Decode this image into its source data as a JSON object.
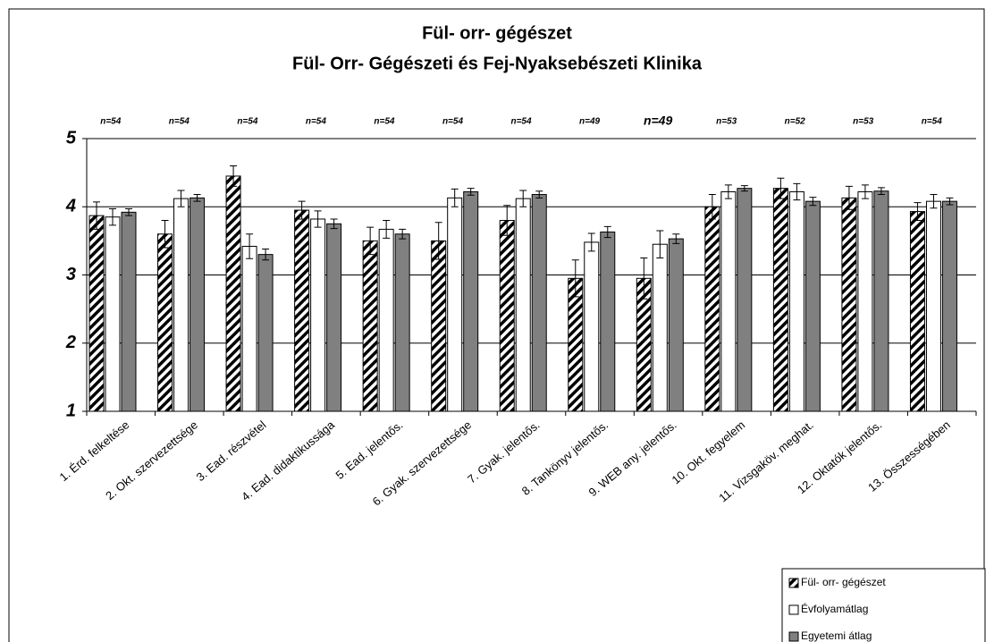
{
  "chart_data": {
    "type": "bar",
    "title": "Fül- orr- gégészet",
    "subtitle": "Fül- Orr- Gégészeti és Fej-Nyaksebészeti Klinika",
    "categories": [
      "1. Érd. felkeltése",
      "2. Okt. szervezettsége",
      "3. Ead. részvétel",
      "4. Ead. didaktikussága",
      "5. Ead. jelentős.",
      "6. Gyak. szervezettsége",
      "7. Gyak. jelentős.",
      "8. Tankönyv jelentős.",
      "9. WEB any. jelentős.",
      "10. Okt. fegyelem",
      "11. Vizsgaköv. meghat.",
      "12. Oktatók jelentős.",
      "13. Összességében"
    ],
    "annotations": [
      "n=54",
      "n=54",
      "n=54",
      "n=54",
      "n=54",
      "n=54",
      "n=54",
      "n=49",
      "n=49",
      "n=53",
      "n=52",
      "n=53",
      "n=54"
    ],
    "series": [
      {
        "name": "Fül- orr- gégészet",
        "color": "hatched",
        "values": [
          3.87,
          3.6,
          4.45,
          3.95,
          3.5,
          3.5,
          3.8,
          2.95,
          2.95,
          4.0,
          4.27,
          4.13,
          3.93
        ],
        "errors": [
          0.2,
          0.2,
          0.15,
          0.13,
          0.2,
          0.27,
          0.22,
          0.27,
          0.3,
          0.18,
          0.15,
          0.17,
          0.13
        ]
      },
      {
        "name": "Évfolyamátlag",
        "color": "#ffffff",
        "values": [
          3.85,
          4.12,
          3.42,
          3.82,
          3.67,
          4.13,
          4.12,
          3.48,
          3.45,
          4.22,
          4.22,
          4.22,
          4.08
        ],
        "errors": [
          0.12,
          0.12,
          0.18,
          0.12,
          0.13,
          0.13,
          0.12,
          0.13,
          0.2,
          0.1,
          0.12,
          0.1,
          0.1
        ]
      },
      {
        "name": "Egyetemi átlag",
        "color": "#808080",
        "values": [
          3.92,
          4.13,
          3.3,
          3.75,
          3.6,
          4.22,
          4.18,
          3.63,
          3.53,
          4.27,
          4.08,
          4.23,
          4.08
        ],
        "errors": [
          0.05,
          0.05,
          0.08,
          0.07,
          0.07,
          0.05,
          0.05,
          0.08,
          0.07,
          0.04,
          0.06,
          0.05,
          0.05
        ]
      }
    ],
    "ylim": [
      1,
      5
    ],
    "yticks": [
      1,
      2,
      3,
      4,
      5
    ],
    "grid": true,
    "legend": "lower right"
  }
}
